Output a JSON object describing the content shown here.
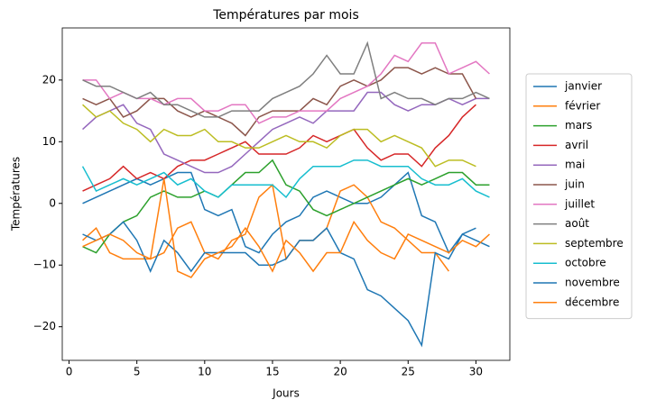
{
  "chart_data": {
    "type": "line",
    "title": "Températures par mois",
    "xlabel": "Jours",
    "ylabel": "Températures",
    "x": [
      1,
      2,
      3,
      4,
      5,
      6,
      7,
      8,
      9,
      10,
      11,
      12,
      13,
      14,
      15,
      16,
      17,
      18,
      19,
      20,
      21,
      22,
      23,
      24,
      25,
      26,
      27,
      28,
      29,
      30,
      31
    ],
    "xlim": [
      -0.5,
      32.5
    ],
    "xticks": [
      0,
      5,
      10,
      15,
      20,
      25,
      30
    ],
    "ylim": [
      -25.45,
      28.45
    ],
    "yticks": [
      {
        "value": -20,
        "label": "−20"
      },
      {
        "value": -10,
        "label": "−10"
      },
      0,
      10,
      20
    ],
    "legend": "outside-right",
    "series": [
      {
        "name": "janvier",
        "color": "#1f77b4",
        "values": [
          0,
          1,
          2,
          3,
          4,
          3,
          4,
          5,
          5,
          -1,
          -2,
          -1,
          -7,
          -8,
          -5,
          -3,
          -2,
          1,
          2,
          1,
          0,
          0,
          1,
          3,
          5,
          -2,
          -3,
          -8,
          -5,
          -6,
          -7
        ]
      },
      {
        "name": "février",
        "color": "#ff7f0e",
        "values": [
          -6,
          -4,
          -8,
          -9,
          -9,
          -9,
          -8,
          -4,
          -3,
          -8,
          -9,
          -6,
          -5,
          1,
          3,
          -9,
          -6,
          -6,
          -4,
          2,
          3,
          1,
          -3,
          -4,
          -6,
          -8,
          -8,
          -11,
          null,
          null,
          null
        ]
      },
      {
        "name": "mars",
        "color": "#2ca02c",
        "values": [
          -7,
          -8,
          -5,
          -3,
          -2,
          1,
          2,
          1,
          1,
          2,
          1,
          3,
          5,
          5,
          7,
          3,
          2,
          -1,
          -2,
          -1,
          0,
          1,
          2,
          3,
          4,
          3,
          4,
          5,
          5,
          3,
          3
        ]
      },
      {
        "name": "avril",
        "color": "#d62728",
        "values": [
          2,
          3,
          4,
          6,
          4,
          5,
          4,
          6,
          7,
          7,
          8,
          9,
          10,
          8,
          8,
          8,
          9,
          11,
          10,
          11,
          12,
          9,
          7,
          8,
          8,
          6,
          9,
          11,
          14,
          16,
          null
        ]
      },
      {
        "name": "mai",
        "color": "#9467bd",
        "values": [
          12,
          14,
          15,
          16,
          13,
          12,
          8,
          7,
          6,
          5,
          5,
          6,
          8,
          10,
          12,
          13,
          14,
          13,
          15,
          15,
          15,
          18,
          18,
          16,
          15,
          16,
          16,
          17,
          16,
          17,
          17
        ]
      },
      {
        "name": "juin",
        "color": "#8c564b",
        "values": [
          17,
          16,
          17,
          14,
          15,
          17,
          17,
          15,
          14,
          15,
          14,
          13,
          11,
          14,
          15,
          15,
          15,
          17,
          16,
          19,
          20,
          19,
          20,
          22,
          22,
          21,
          22,
          21,
          21,
          17,
          null
        ]
      },
      {
        "name": "juillet",
        "color": "#e377c2",
        "values": [
          20,
          20,
          17,
          18,
          17,
          17,
          16,
          17,
          17,
          15,
          15,
          16,
          16,
          13,
          14,
          14,
          15,
          15,
          15,
          17,
          18,
          19,
          21,
          24,
          23,
          26,
          26,
          21,
          22,
          23,
          21
        ]
      },
      {
        "name": "août",
        "color": "#7f7f7f",
        "values": [
          20,
          19,
          19,
          18,
          17,
          18,
          16,
          16,
          15,
          14,
          14,
          15,
          15,
          15,
          17,
          18,
          19,
          21,
          24,
          21,
          21,
          26,
          17,
          18,
          17,
          17,
          16,
          17,
          17,
          18,
          17
        ]
      },
      {
        "name": "septembre",
        "color": "#bcbd22",
        "values": [
          16,
          14,
          15,
          13,
          12,
          10,
          12,
          11,
          11,
          12,
          10,
          10,
          9,
          9,
          10,
          11,
          10,
          10,
          9,
          11,
          12,
          12,
          10,
          11,
          10,
          9,
          6,
          7,
          7,
          6,
          null
        ]
      },
      {
        "name": "octobre",
        "color": "#17becf",
        "values": [
          6,
          2,
          3,
          4,
          3,
          4,
          5,
          3,
          4,
          2,
          1,
          3,
          3,
          3,
          3,
          1,
          4,
          6,
          6,
          6,
          7,
          7,
          6,
          6,
          6,
          4,
          3,
          3,
          4,
          2,
          1
        ]
      },
      {
        "name": "novembre",
        "color": "#1f77b4",
        "values": [
          -5,
          -6,
          -5,
          -3,
          -6,
          -11,
          -6,
          -8,
          -11,
          -8,
          -8,
          -8,
          -8,
          -10,
          -10,
          -9,
          -6,
          -6,
          -4,
          -8,
          -9,
          -14,
          -15,
          -17,
          -19,
          -23,
          -8,
          -9,
          -5,
          -4,
          null
        ]
      },
      {
        "name": "décembre",
        "color": "#ff7f0e",
        "values": [
          -7,
          -6,
          -5,
          -6,
          -8,
          -9,
          4,
          -11,
          -12,
          -9,
          -8,
          -7,
          -4,
          -7,
          -11,
          -6,
          -8,
          -11,
          -8,
          -8,
          -3,
          -6,
          -8,
          -9,
          -5,
          -6,
          -7,
          -8,
          -6,
          -7,
          -5
        ]
      }
    ]
  }
}
